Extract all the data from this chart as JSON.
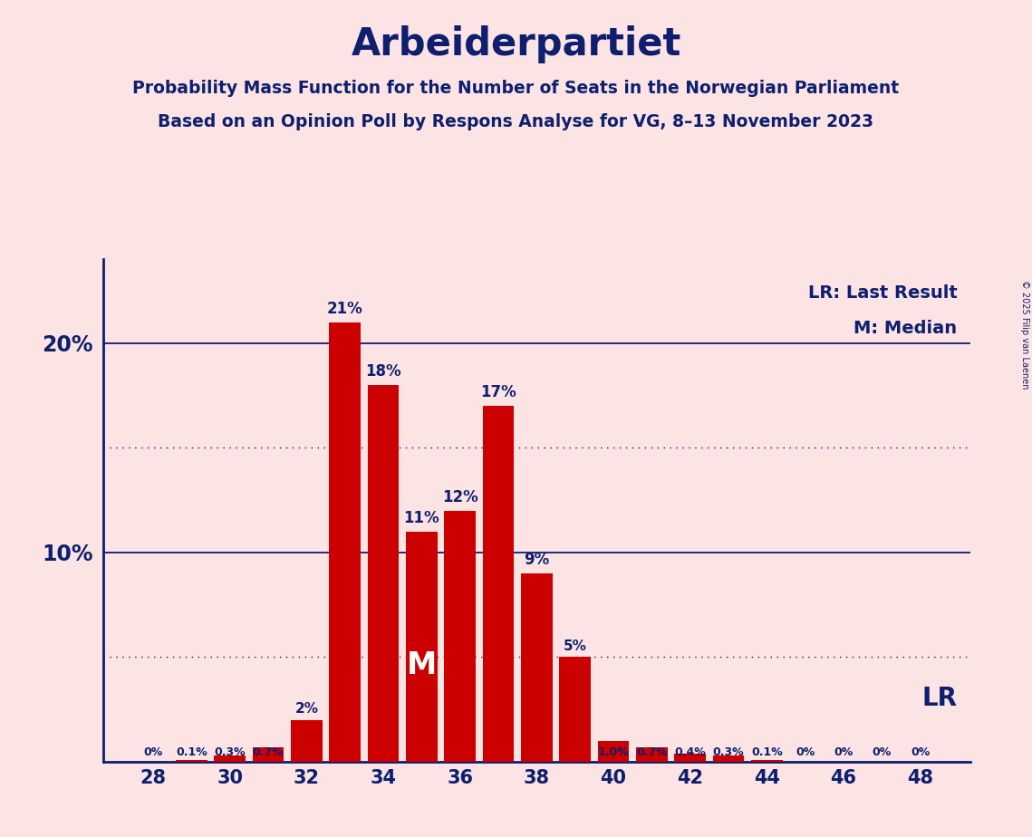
{
  "title": "Arbeiderpartiet",
  "subtitle1": "Probability Mass Function for the Number of Seats in the Norwegian Parliament",
  "subtitle2": "Based on an Opinion Poll by Respons Analyse for VG, 8–13 November 2023",
  "copyright": "© 2025 Filip van Laenen",
  "seats": [
    28,
    29,
    30,
    31,
    32,
    33,
    34,
    35,
    36,
    37,
    38,
    39,
    40,
    41,
    42,
    43,
    44,
    45,
    46,
    47,
    48
  ],
  "probabilities": [
    0.0,
    0.1,
    0.3,
    0.7,
    2.0,
    21.0,
    18.0,
    11.0,
    12.0,
    17.0,
    9.0,
    5.0,
    1.0,
    0.7,
    0.4,
    0.3,
    0.1,
    0.0,
    0.0,
    0.0,
    0.0
  ],
  "bar_color": "#cc0000",
  "bg_color": "#fce4e4",
  "text_color": "#0d1f6e",
  "median": 35,
  "last_result": 48,
  "ylim": [
    0,
    24
  ],
  "legend_lr": "LR: Last Result",
  "legend_m": "M: Median",
  "legend_lr_short": "LR",
  "legend_m_short": "M"
}
